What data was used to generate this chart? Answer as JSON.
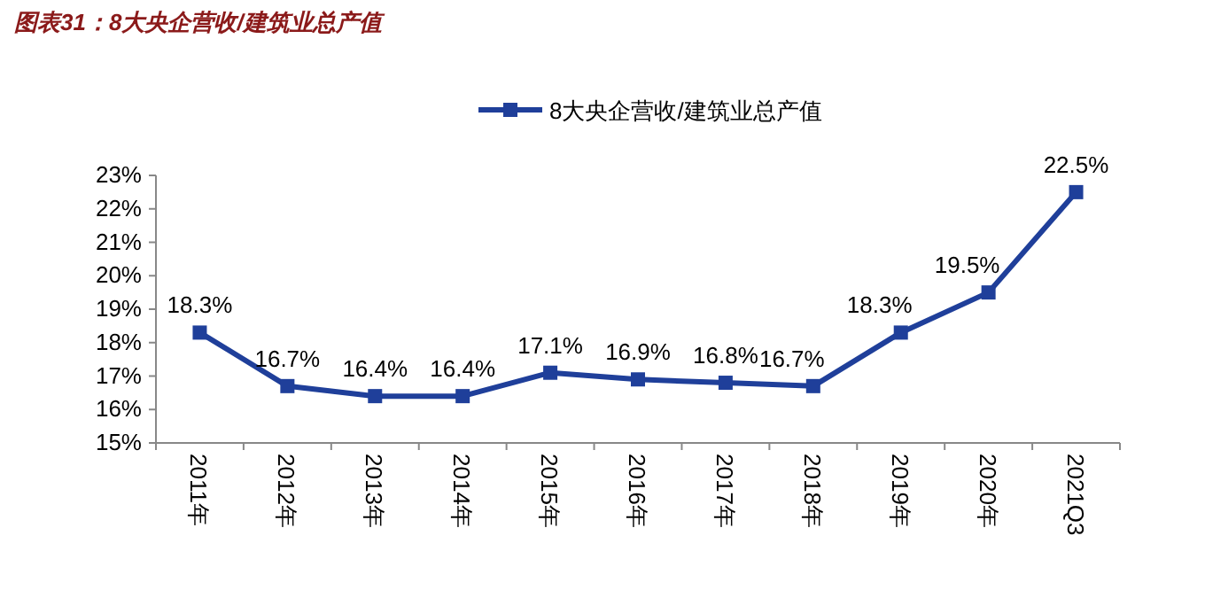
{
  "chart_data": {
    "type": "line",
    "title": "图表31：8大央企营收/建筑业总产值",
    "categories": [
      "2011年",
      "2012年",
      "2013年",
      "2014年",
      "2015年",
      "2016年",
      "2017年",
      "2018年",
      "2019年",
      "2020年",
      "2021Q3"
    ],
    "series": [
      {
        "name": "8大央企营收/建筑业总产值",
        "color": "#1f3f9a",
        "values": [
          18.3,
          16.7,
          16.4,
          16.4,
          17.1,
          16.9,
          16.8,
          16.7,
          18.3,
          19.5,
          22.5
        ],
        "value_labels": [
          "18.3%",
          "16.7%",
          "16.4%",
          "16.4%",
          "17.1%",
          "16.9%",
          "16.8%",
          "16.7%",
          "18.3%",
          "19.5%",
          "22.5%"
        ]
      }
    ],
    "ylim": [
      15,
      23
    ],
    "yticks": [
      {
        "value": 15,
        "label": "15%"
      },
      {
        "value": 16,
        "label": "16%"
      },
      {
        "value": 17,
        "label": "17%"
      },
      {
        "value": 18,
        "label": "18%"
      },
      {
        "value": 19,
        "label": "19%"
      },
      {
        "value": 20,
        "label": "20%"
      },
      {
        "value": 21,
        "label": "21%"
      },
      {
        "value": 22,
        "label": "22%"
      },
      {
        "value": 23,
        "label": "23%"
      }
    ],
    "legend": "top",
    "marker": "square",
    "line_style": "solid"
  }
}
